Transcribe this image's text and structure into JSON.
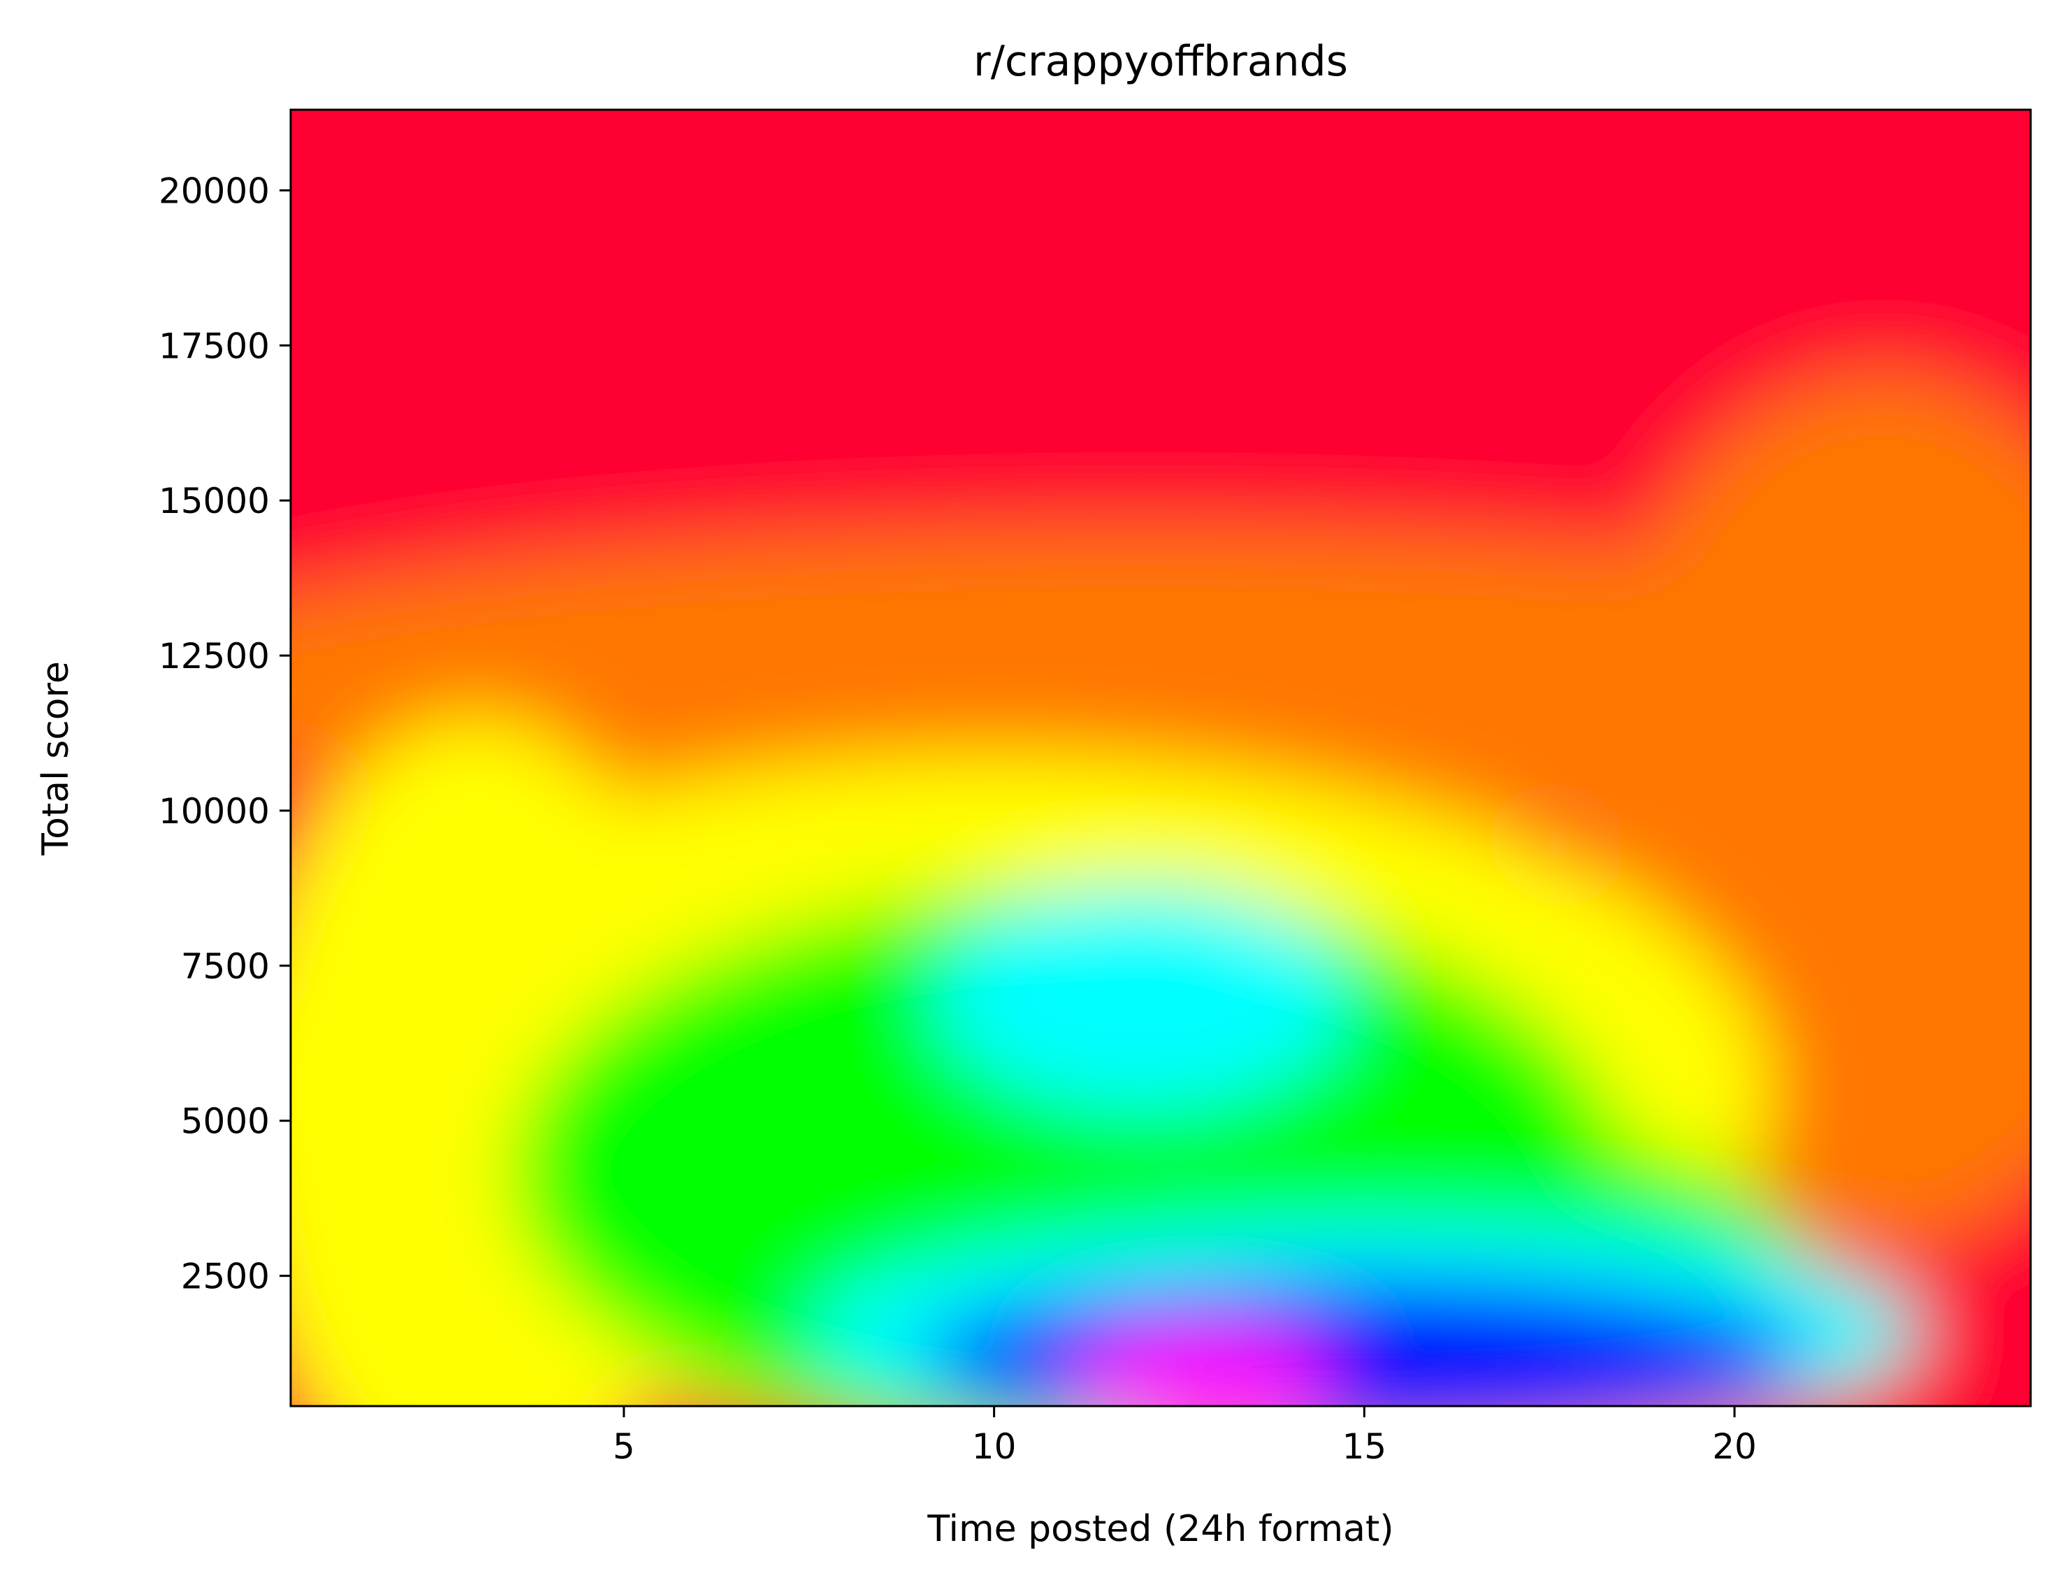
{
  "chart_data": {
    "type": "heatmap",
    "title": "r/crappyoffbrands",
    "xlabel": "Time posted (24h format)",
    "ylabel": "Total score",
    "xlim": [
      0.5,
      24
    ],
    "ylim": [
      400,
      21300
    ],
    "x_ticks": [
      5,
      10,
      15,
      20
    ],
    "x_tick_labels": [
      "5",
      "10",
      "15",
      "20"
    ],
    "y_ticks": [
      2500,
      5000,
      7500,
      10000,
      12500,
      15000,
      17500,
      20000
    ],
    "y_tick_labels": [
      "2500",
      "5000",
      "7500",
      "10000",
      "12500",
      "15000",
      "17500",
      "20000"
    ],
    "colormap": "hsv",
    "grid": false,
    "legend": "none",
    "colors": {
      "red": "#ff0033",
      "orange": "#ff7700",
      "yellow": "#ffff00",
      "green": "#00ff00",
      "cyan": "#00ffff",
      "blue": "#0000ff",
      "magenta": "#ff00ff"
    }
  }
}
